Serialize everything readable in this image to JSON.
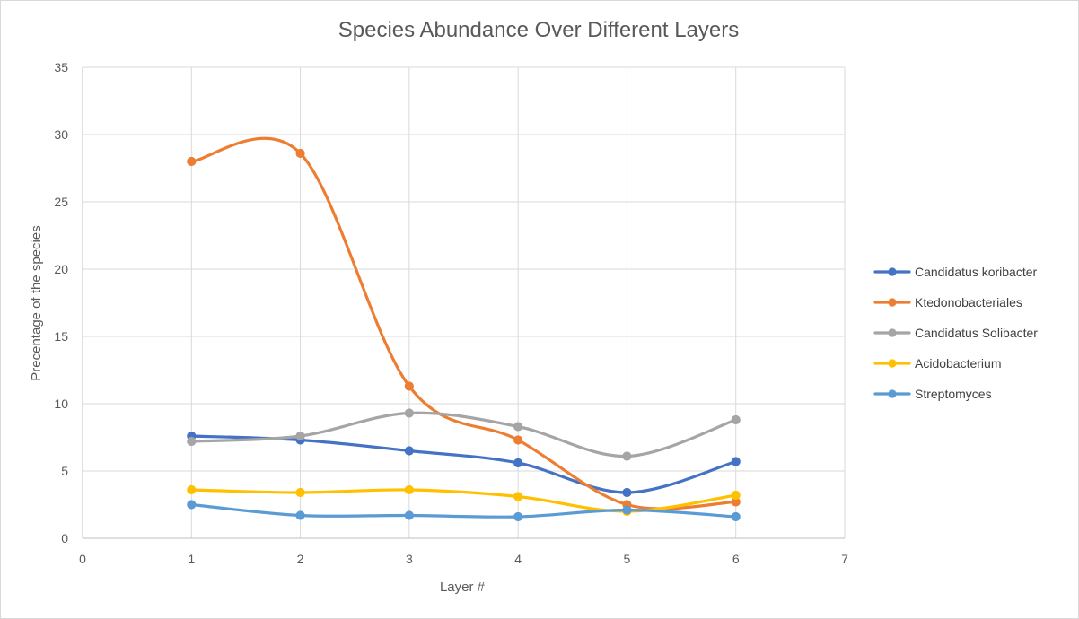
{
  "chart_data": {
    "type": "scatter",
    "title": "Species Abundance Over Different Layers",
    "xlabel": "Layer #",
    "ylabel": "Precentage of the species",
    "xlim": [
      0,
      7
    ],
    "ylim": [
      0,
      35
    ],
    "xticks": [
      0,
      1,
      2,
      3,
      4,
      5,
      6,
      7
    ],
    "yticks": [
      0,
      5,
      10,
      15,
      20,
      25,
      30,
      35
    ],
    "grid": true,
    "smooth_lines": true,
    "legend_position": "right",
    "x": [
      1,
      2,
      3,
      4,
      5,
      6
    ],
    "series": [
      {
        "name": "Candidatus koribacter",
        "color": "#4472C4",
        "values": [
          7.6,
          7.3,
          6.5,
          5.6,
          3.4,
          5.7
        ]
      },
      {
        "name": "Ktedonobacteriales",
        "color": "#ED7D31",
        "values": [
          28.0,
          28.6,
          11.3,
          7.3,
          2.5,
          2.7
        ]
      },
      {
        "name": "Candidatus Solibacter",
        "color": "#A5A5A5",
        "values": [
          7.2,
          7.6,
          9.3,
          8.3,
          6.1,
          8.8
        ]
      },
      {
        "name": "Acidobacterium",
        "color": "#FFC000",
        "values": [
          3.6,
          3.4,
          3.6,
          3.1,
          2.0,
          3.2
        ]
      },
      {
        "name": "Streptomyces",
        "color": "#5B9BD5",
        "values": [
          2.5,
          1.7,
          1.7,
          1.6,
          2.1,
          1.6
        ]
      }
    ]
  }
}
